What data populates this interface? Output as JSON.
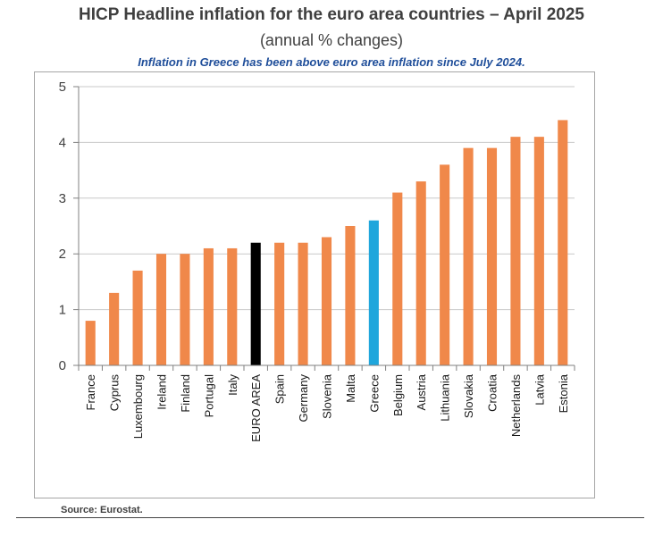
{
  "page": {
    "title": "HICP Headline inflation for the euro area countries – April 2025",
    "subtitle": "(annual % changes)",
    "note": "Inflation in Greece has been above euro area inflation since July 2024.",
    "source": "Source: Eurostat."
  },
  "chart_data": {
    "type": "bar",
    "title": "HICP Headline inflation for the euro area countries – April 2025",
    "subtitle": "(annual % changes)",
    "xlabel": "",
    "ylabel": "",
    "ylim": [
      0,
      5
    ],
    "yticks": [
      0,
      1,
      2,
      3,
      4,
      5
    ],
    "grid": true,
    "categories": [
      "France",
      "Cyprus",
      "Luxembourg",
      "Ireland",
      "Finland",
      "Portugal",
      "Italy",
      "EURO AREA",
      "Spain",
      "Germany",
      "Slovenia",
      "Malta",
      "Greece",
      "Belgium",
      "Austria",
      "Lithuania",
      "Slovakia",
      "Croatia",
      "Netherlands",
      "Latvia",
      "Estonia"
    ],
    "values": [
      0.8,
      1.3,
      1.7,
      2.0,
      2.0,
      2.1,
      2.1,
      2.2,
      2.2,
      2.2,
      2.3,
      2.5,
      2.6,
      3.1,
      3.3,
      3.6,
      3.9,
      3.9,
      4.1,
      4.1,
      4.4
    ],
    "colors": {
      "default": "#f0884a",
      "EURO AREA": "#000000",
      "Greece": "#1fa6dc"
    }
  }
}
